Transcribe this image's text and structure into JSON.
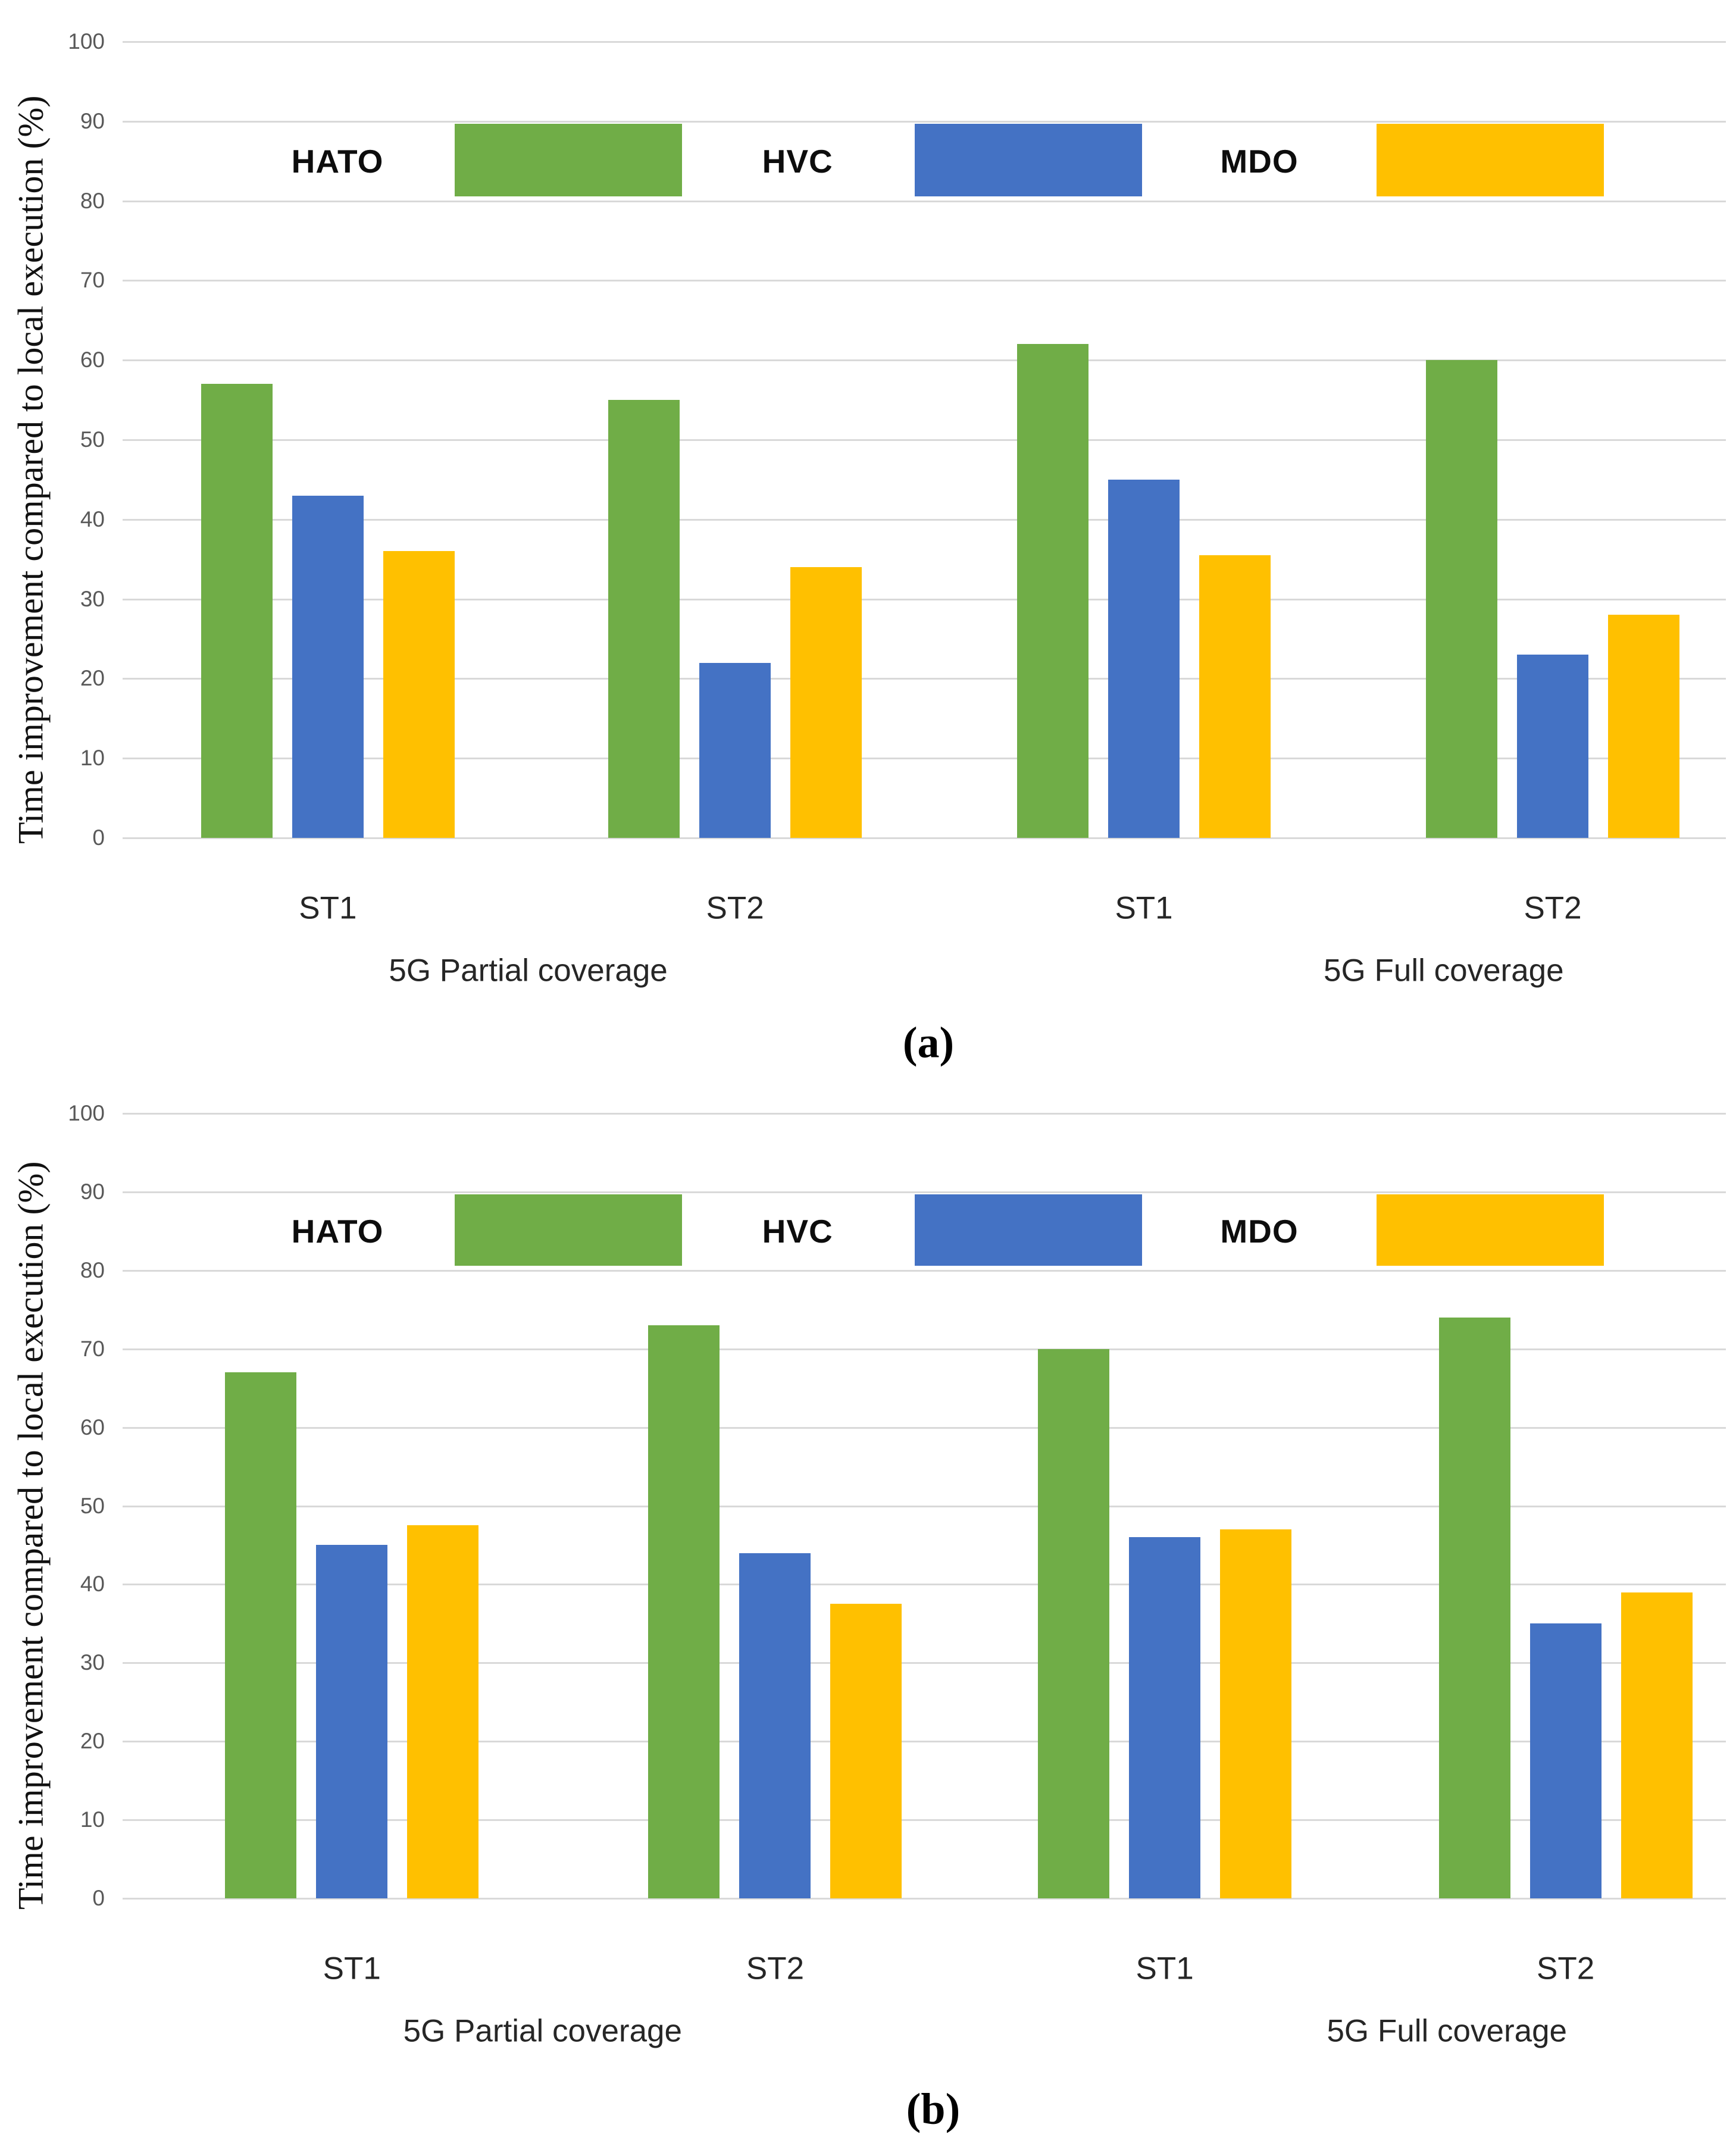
{
  "figure": {
    "ylabel": "Time improvement compared to local execution (%)"
  },
  "colors": {
    "hato": "#70AD47",
    "hvc": "#4472C4",
    "mdo": "#FFC000",
    "gridline": "#D9D9D9",
    "tick_text": "#595959",
    "axis_text": "#262626"
  },
  "chart_data": [
    {
      "type": "bar",
      "panel": "a",
      "title": "",
      "xlabel": "",
      "ylabel": "Time improvement compared to local execution (%)",
      "ylim": [
        0,
        100
      ],
      "yticks": [
        0,
        10,
        20,
        30,
        40,
        50,
        60,
        70,
        80,
        90,
        100
      ],
      "grid": "horizontal",
      "legend_position": "top-inside",
      "categories": [
        "ST1",
        "ST2",
        "ST1",
        "ST2"
      ],
      "group_labels": [
        "5G Partial coverage",
        "5G Full coverage"
      ],
      "legend": [
        "HATO",
        "HVC",
        "MDO"
      ],
      "series": [
        {
          "name": "HATO",
          "values": [
            57,
            55,
            62,
            60
          ]
        },
        {
          "name": "HVC",
          "values": [
            43,
            22,
            45,
            23
          ]
        },
        {
          "name": "MDO",
          "values": [
            36,
            34,
            35.5,
            28
          ]
        }
      ],
      "caption": "(a)"
    },
    {
      "type": "bar",
      "panel": "b",
      "title": "",
      "xlabel": "",
      "ylabel": "Time improvement compared to local execution (%)",
      "ylim": [
        0,
        100
      ],
      "yticks": [
        0,
        10,
        20,
        30,
        40,
        50,
        60,
        70,
        80,
        90,
        100
      ],
      "grid": "horizontal",
      "legend_position": "top-inside",
      "categories": [
        "ST1",
        "ST2",
        "ST1",
        "ST2"
      ],
      "group_labels": [
        "5G Partial coverage",
        "5G Full coverage"
      ],
      "legend": [
        "HATO",
        "HVC",
        "MDO"
      ],
      "series": [
        {
          "name": "HATO",
          "values": [
            67,
            73,
            70,
            74
          ]
        },
        {
          "name": "HVC",
          "values": [
            45,
            44,
            46,
            35
          ]
        },
        {
          "name": "MDO",
          "values": [
            47.5,
            37.5,
            47,
            39
          ]
        }
      ],
      "caption": "(b)"
    }
  ]
}
